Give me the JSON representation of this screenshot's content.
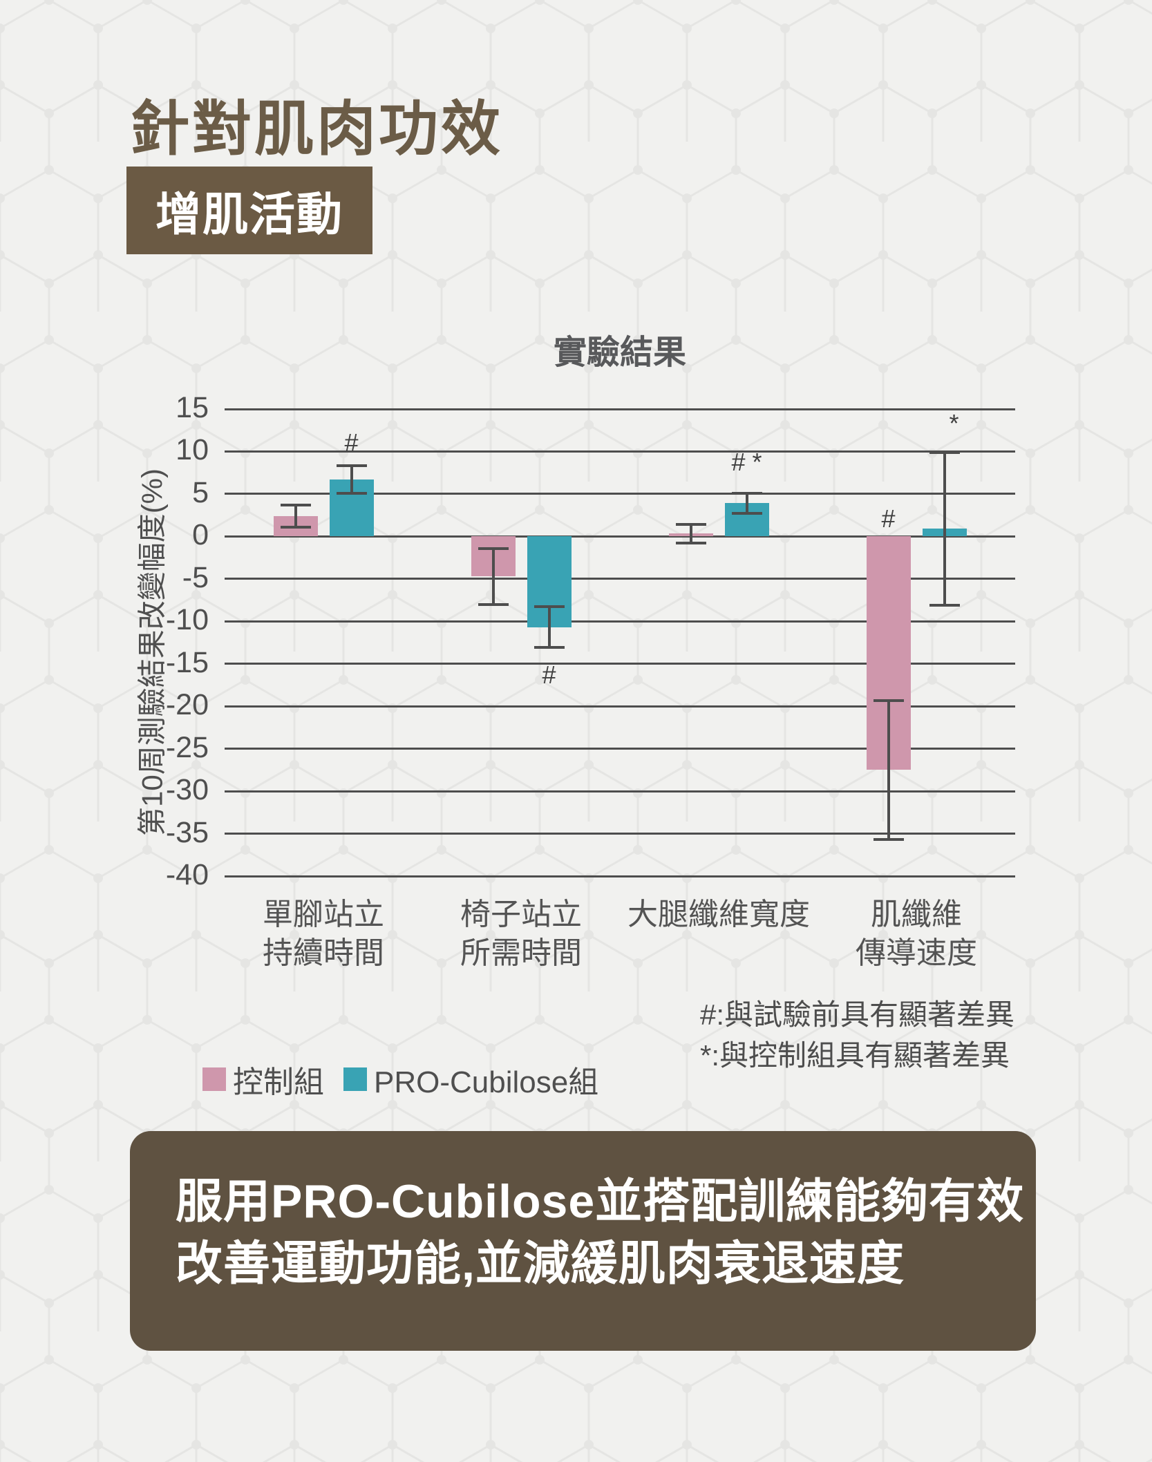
{
  "header": {
    "title": "針對肌肉功效",
    "badge": "增肌活動"
  },
  "chart_data": {
    "type": "bar",
    "title": "實驗結果",
    "y_axis_title": "第10周測驗結果改變幅度(%)",
    "ylim": [
      -40,
      15
    ],
    "yticks": [
      15,
      10,
      5,
      0,
      -5,
      -10,
      -15,
      -20,
      -25,
      -30,
      -35,
      -40
    ],
    "grid": "horizontal",
    "categories": [
      "單腳站立\n持續時間",
      "椅子站立\n所需時間",
      "大腿纖維寬度",
      "肌纖維\n傳導速度"
    ],
    "series": [
      {
        "name": "控制組",
        "color": "#cf97ac",
        "values": [
          2.4,
          -4.7,
          0.35,
          -27.5
        ],
        "errors": [
          1.3,
          3.3,
          1.1,
          8.2
        ],
        "markers": [
          null,
          null,
          null,
          {
            "text": "#",
            "y": 2.1
          }
        ]
      },
      {
        "name": "PRO-Cubilose組",
        "color": "#39a3b4",
        "values": [
          6.7,
          -10.7,
          3.9,
          0.9
        ],
        "errors": [
          1.6,
          2.4,
          1.2,
          9.0
        ],
        "markers": [
          {
            "text": "#",
            "y": 11
          },
          {
            "text": "#",
            "y": -16.3
          },
          {
            "text": "# *",
            "y": 8.7
          },
          {
            "text": "*",
            "y": 13.3,
            "dx": 14
          }
        ]
      }
    ],
    "legend_position": "bottom-left",
    "notes": [
      "#:與試驗前具有顯著差異",
      "*:與控制組具有顯著差異"
    ]
  },
  "callout": {
    "line1": "服用PRO-Cubilose並搭配訓練能夠有效",
    "line2": "改善運動功能,並減緩肌肉衰退速度"
  },
  "colors": {
    "title_brown": "#6b5c47",
    "badge_bg": "#6b5a44",
    "callout_bg": "#5f5241",
    "control_pink": "#cf97ac",
    "pro_teal": "#39a3b4",
    "grid_gray": "#4d4d4d",
    "text_gray": "#4f4f4f",
    "background": "#f1f1ef",
    "hex_pattern": "#e4e4e2"
  }
}
